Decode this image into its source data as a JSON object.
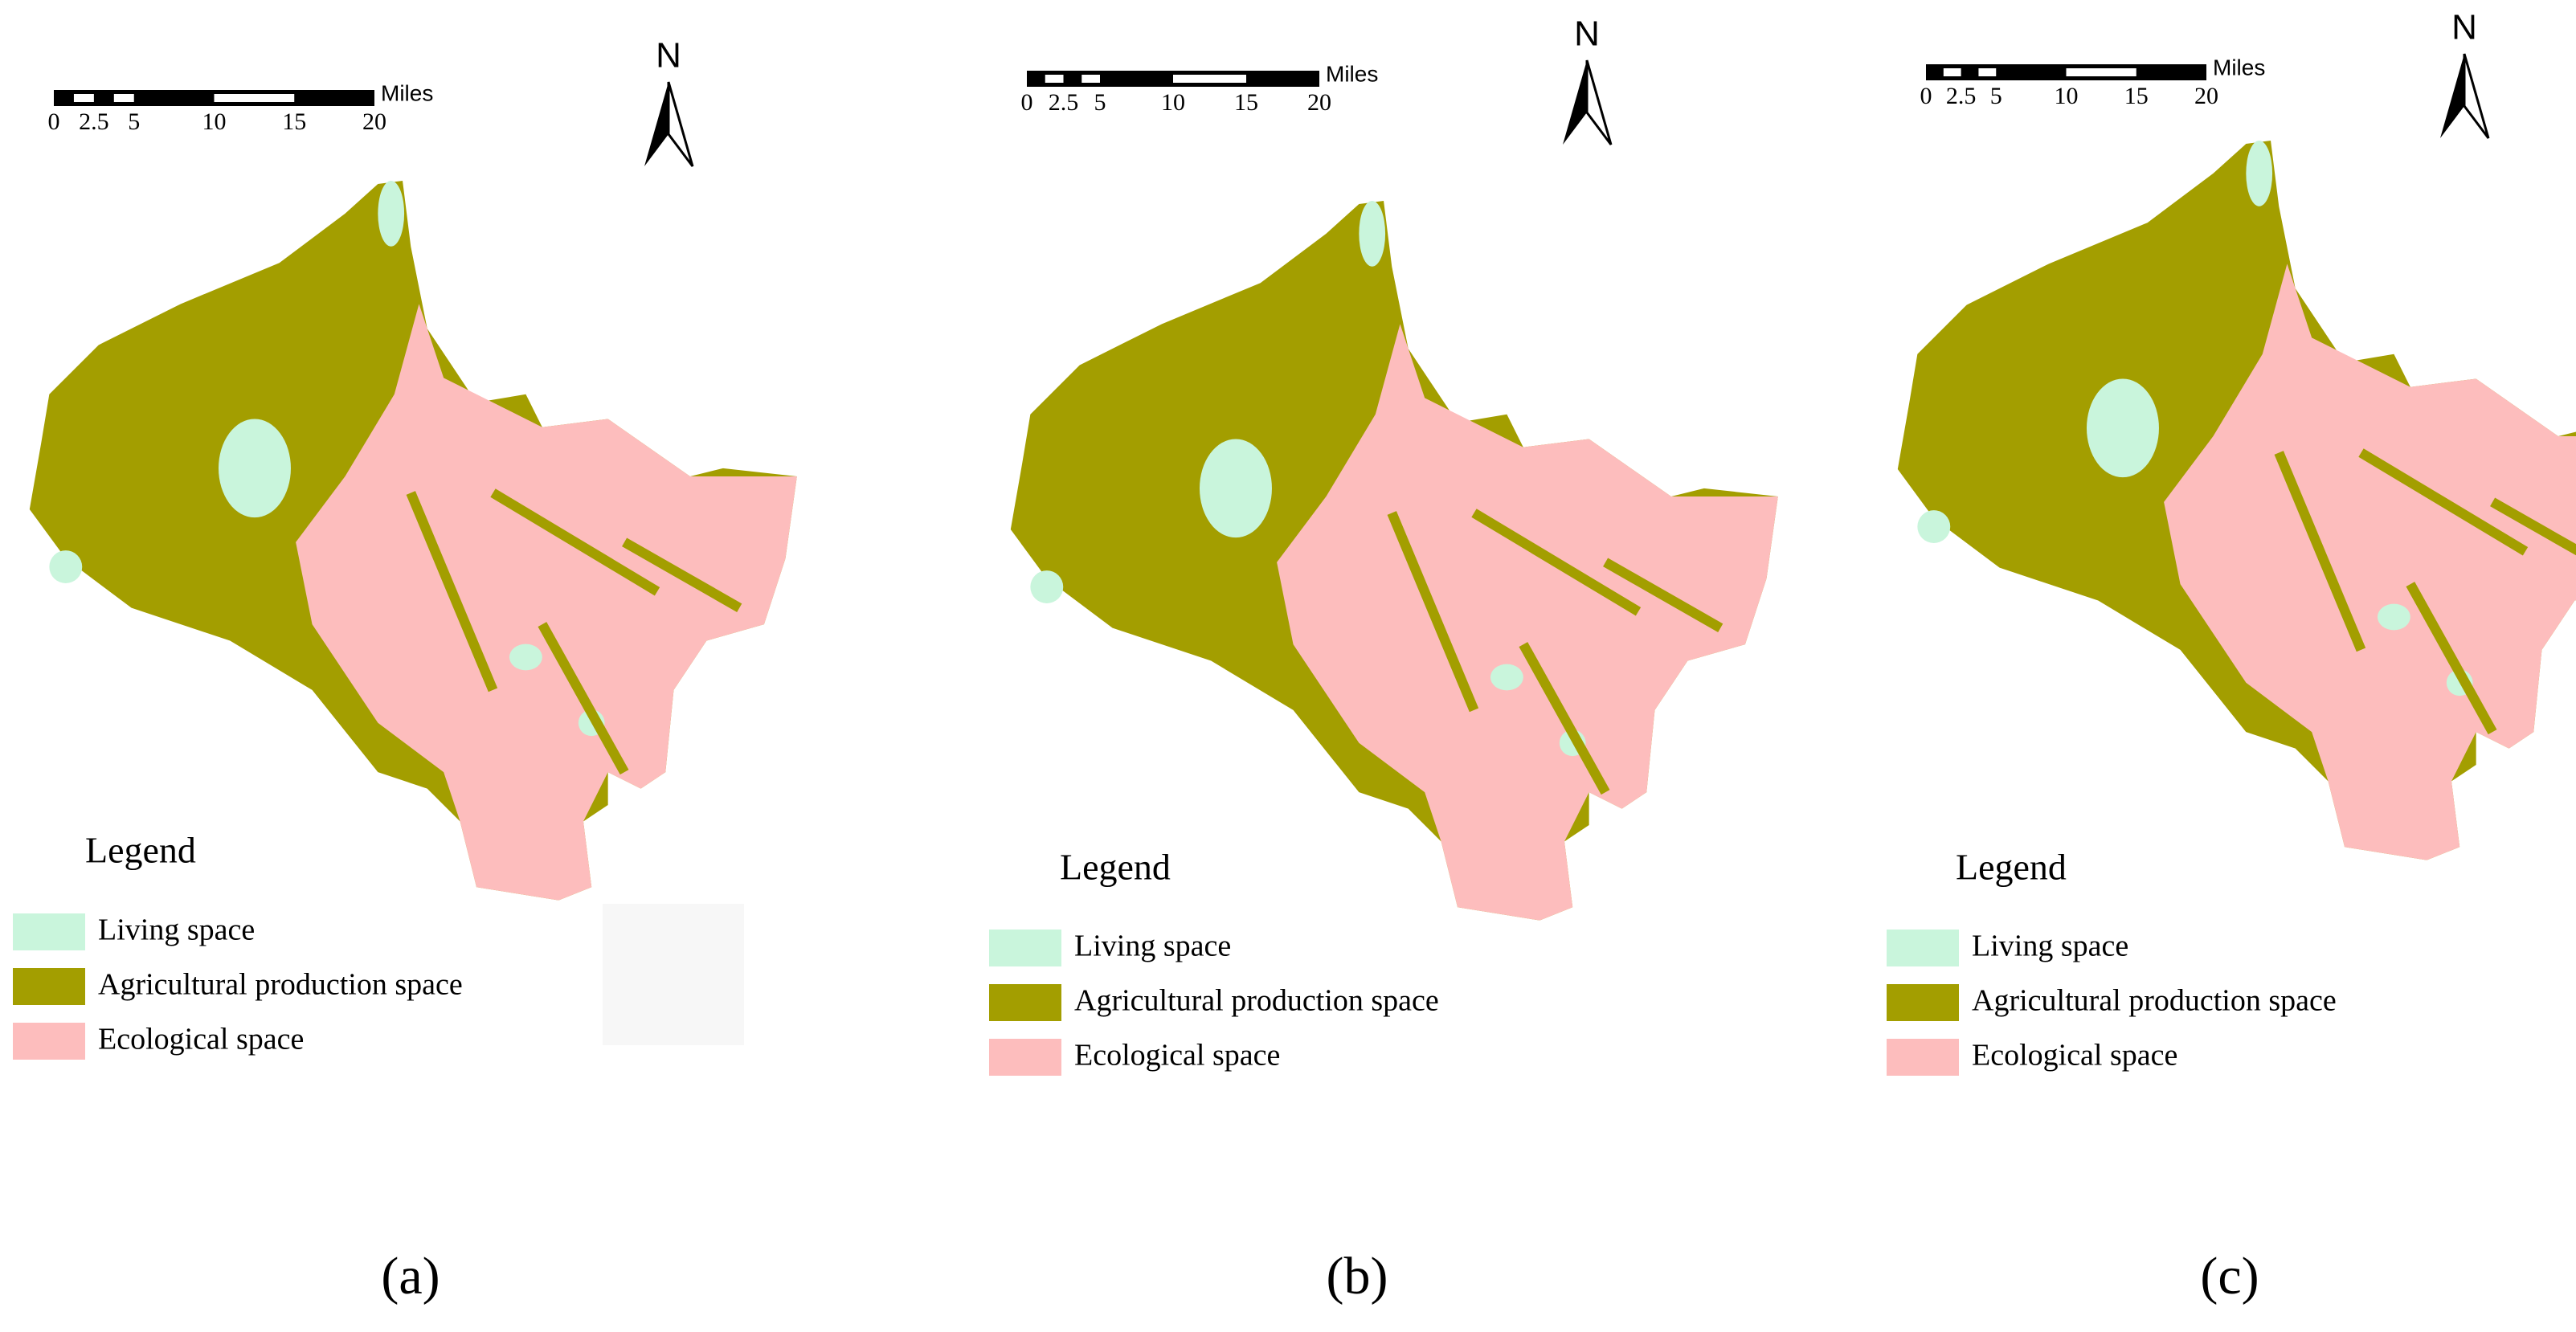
{
  "panels": [
    {
      "scale": {
        "ticks": [
          0,
          2.5,
          5,
          10,
          15,
          20
        ],
        "unit": "Miles"
      },
      "north": "N",
      "legend": {
        "title": "Legend",
        "items": [
          {
            "label": "Living space",
            "color": "#c9f5dc"
          },
          {
            "label": "Agricultural production space",
            "color": "#a39e00"
          },
          {
            "label": "Ecological space",
            "color": "#fdbdbd"
          }
        ]
      },
      "caption": "(a)"
    },
    {
      "scale": {
        "ticks": [
          0,
          2.5,
          5,
          10,
          15,
          20
        ],
        "unit": "Miles"
      },
      "north": "N",
      "legend": {
        "title": "Legend",
        "items": [
          {
            "label": "Living space",
            "color": "#c9f5dc"
          },
          {
            "label": "Agricultural production space",
            "color": "#a39e00"
          },
          {
            "label": "Ecological space",
            "color": "#fdbdbd"
          }
        ]
      },
      "caption": "(b)"
    },
    {
      "scale": {
        "ticks": [
          0,
          2.5,
          5,
          10,
          15,
          20
        ],
        "unit": "Miles"
      },
      "north": "N",
      "legend": {
        "title": "Legend",
        "items": [
          {
            "label": "Living space",
            "color": "#c9f5dc"
          },
          {
            "label": "Agricultural production space",
            "color": "#a39e00"
          },
          {
            "label": "Ecological space",
            "color": "#fdbdbd"
          }
        ]
      },
      "caption": "(c)"
    }
  ]
}
